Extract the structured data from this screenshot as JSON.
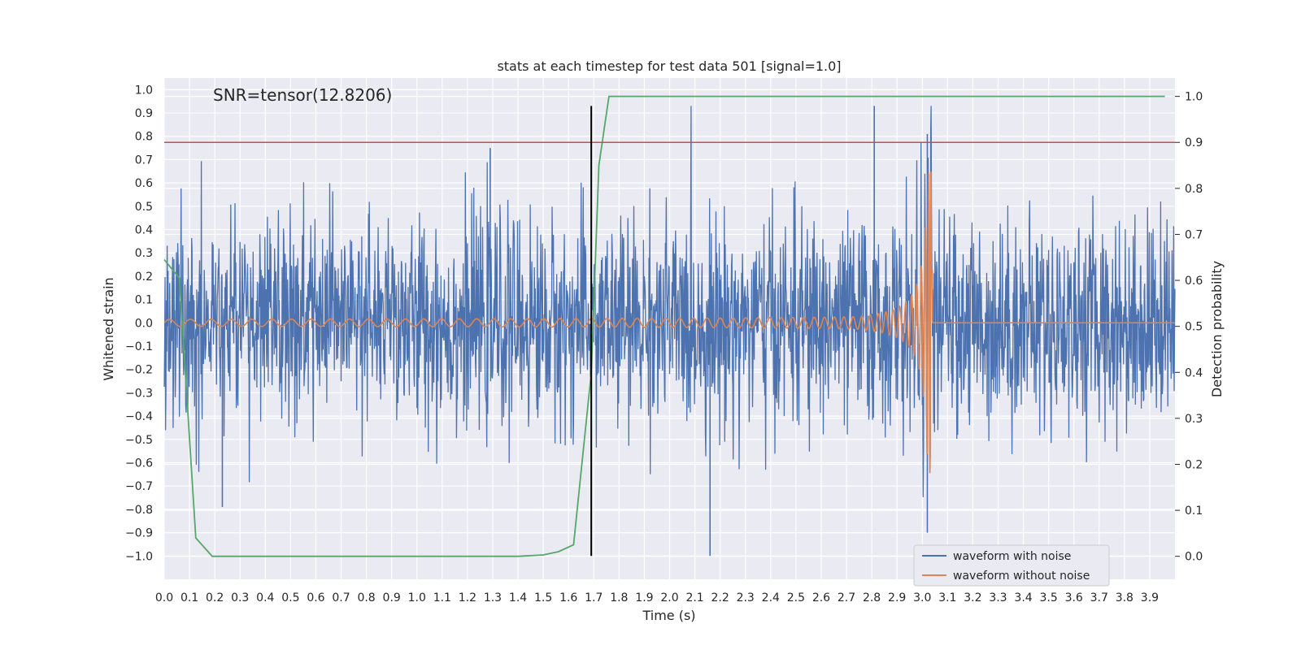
{
  "chart_data": {
    "type": "line",
    "title": "stats at each timestep for test data 501 [signal=1.0]",
    "xlabel": "Time (s)",
    "ylabel": "Whitened strain",
    "y2label": "Detection probability",
    "annotation": "SNR=tensor(12.8206)",
    "xlim": [
      0.0,
      4.0
    ],
    "ylim": [
      -1.1,
      1.05
    ],
    "y2lim": [
      -0.05,
      1.04
    ],
    "x_ticks": [
      0.0,
      0.1,
      0.2,
      0.3,
      0.4,
      0.5,
      0.6,
      0.7,
      0.8,
      0.9,
      1.0,
      1.1,
      1.2,
      1.3,
      1.4,
      1.5,
      1.6,
      1.7,
      1.8,
      1.9,
      2.0,
      2.1,
      2.2,
      2.3,
      2.4,
      2.5,
      2.6,
      2.7,
      2.8,
      2.9,
      3.0,
      3.1,
      3.2,
      3.3,
      3.4,
      3.5,
      3.6,
      3.7,
      3.8,
      3.9
    ],
    "x_tick_labels": [
      "0.0",
      "0.1",
      "0.2",
      "0.3",
      "0.4",
      "0.5",
      "0.6",
      "0.7",
      "0.8",
      "0.9",
      "1.0",
      "1.1",
      "1.2",
      "1.3",
      "1.4",
      "1.5",
      "1.6",
      "1.7",
      "1.8",
      "1.9",
      "2.0",
      "2.1",
      "2.2",
      "2.3",
      "2.4",
      "2.5",
      "2.6",
      "2.7",
      "2.8",
      "2.9",
      "3.0",
      "3.1",
      "3.2",
      "3.3",
      "3.4",
      "3.5",
      "3.6",
      "3.7",
      "3.8",
      "3.9"
    ],
    "y_ticks": [
      1.0,
      0.9,
      0.8,
      0.7,
      0.6,
      0.5,
      0.4,
      0.3,
      0.2,
      0.1,
      0.0,
      -0.1,
      -0.2,
      -0.3,
      -0.4,
      -0.5,
      -0.6,
      -0.7,
      -0.8,
      -0.9,
      -1.0
    ],
    "y_tick_labels": [
      "1.0",
      "0.9",
      "0.8",
      "0.7",
      "0.6",
      "0.5",
      "0.4",
      "0.3",
      "0.2",
      "0.1",
      "0.0",
      "−0.1",
      "−0.2",
      "−0.3",
      "−0.4",
      "−0.5",
      "−0.6",
      "−0.7",
      "−0.8",
      "−0.9",
      "−1.0"
    ],
    "y2_ticks": [
      1.0,
      0.9,
      0.8,
      0.7,
      0.6,
      0.5,
      0.4,
      0.3,
      0.2,
      0.1,
      0.0
    ],
    "y2_tick_labels": [
      "1.0",
      "0.9",
      "0.8",
      "0.7",
      "0.6",
      "0.5",
      "0.4",
      "0.3",
      "0.2",
      "0.1",
      "0.0"
    ],
    "grid": true,
    "legend_position": "bottom-right",
    "series": [
      {
        "name": "waveform with noise",
        "color": "#4c72b0",
        "axis": "left",
        "kind": "noise",
        "approx_range": [
          -1.0,
          0.93
        ],
        "typical_std": 0.22,
        "notable_peaks": [
          {
            "x": 1.29,
            "y": 0.75
          },
          {
            "x": 2.16,
            "y": -1.0
          },
          {
            "x": 2.81,
            "y": 0.93
          },
          {
            "x": 3.02,
            "y": 0.81
          },
          {
            "x": 3.02,
            "y": -0.9
          },
          {
            "x": 0.23,
            "y": -0.79
          }
        ]
      },
      {
        "name": "waveform without noise",
        "color": "#dd8452",
        "axis": "left",
        "kind": "chirp",
        "start_x": 0.0,
        "merger_x": 3.04,
        "start_amplitude": 0.015,
        "peak_amplitude": 0.65,
        "start_frequency_hz": 12,
        "end_value_after_merger": 0.0
      },
      {
        "name": "detection probability",
        "color": "#55a868",
        "axis": "right",
        "points": [
          [
            0.0,
            0.645
          ],
          [
            0.06,
            0.605
          ],
          [
            0.125,
            0.04
          ],
          [
            0.19,
            0.0
          ],
          [
            1.4,
            0.0
          ],
          [
            1.5,
            0.003
          ],
          [
            1.56,
            0.01
          ],
          [
            1.62,
            0.025
          ],
          [
            1.69,
            0.4
          ],
          [
            1.72,
            0.85
          ],
          [
            1.76,
            1.0
          ],
          [
            3.96,
            1.0
          ]
        ]
      }
    ],
    "threshold_line": {
      "axis": "right",
      "y": 0.9,
      "color": "#c44e52"
    },
    "vertical_line": {
      "x": 1.69,
      "y_from": -1.0,
      "y_to": 0.93,
      "color": "#000000"
    }
  }
}
